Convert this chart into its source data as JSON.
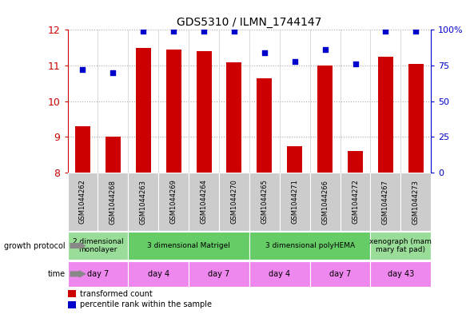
{
  "title": "GDS5310 / ILMN_1744147",
  "samples": [
    "GSM1044262",
    "GSM1044268",
    "GSM1044263",
    "GSM1044269",
    "GSM1044264",
    "GSM1044270",
    "GSM1044265",
    "GSM1044271",
    "GSM1044266",
    "GSM1044272",
    "GSM1044267",
    "GSM1044273"
  ],
  "bar_values": [
    9.3,
    9.0,
    11.5,
    11.45,
    11.4,
    11.1,
    10.65,
    8.75,
    11.0,
    8.6,
    11.25,
    11.05
  ],
  "dot_values": [
    72,
    70,
    99,
    99,
    99,
    99,
    84,
    78,
    86,
    76,
    99,
    99
  ],
  "ylim_left": [
    8,
    12
  ],
  "ylim_right": [
    0,
    100
  ],
  "yticks_left": [
    8,
    9,
    10,
    11,
    12
  ],
  "yticks_right": [
    0,
    25,
    50,
    75,
    100
  ],
  "bar_color": "#cc0000",
  "dot_color": "#0000cc",
  "grid_color": "#aaaaaa",
  "growth_protocol_groups": [
    {
      "label": "2 dimensional\nmonolayer",
      "start": 0,
      "end": 2,
      "color": "#99dd99"
    },
    {
      "label": "3 dimensional Matrigel",
      "start": 2,
      "end": 6,
      "color": "#66cc66"
    },
    {
      "label": "3 dimensional polyHEMA",
      "start": 6,
      "end": 10,
      "color": "#66cc66"
    },
    {
      "label": "xenograph (mam\nmary fat pad)",
      "start": 10,
      "end": 12,
      "color": "#99dd99"
    }
  ],
  "time_groups": [
    {
      "label": "day 7",
      "start": 0,
      "end": 2
    },
    {
      "label": "day 4",
      "start": 2,
      "end": 4
    },
    {
      "label": "day 7",
      "start": 4,
      "end": 6
    },
    {
      "label": "day 4",
      "start": 6,
      "end": 8
    },
    {
      "label": "day 7",
      "start": 8,
      "end": 10
    },
    {
      "label": "day 43",
      "start": 10,
      "end": 12
    }
  ],
  "time_color": "#ee88ee",
  "sample_bg_color": "#cccccc",
  "left_axis_color": "#cc0000",
  "right_axis_color": "#0000cc",
  "left_label_color": "#777777"
}
